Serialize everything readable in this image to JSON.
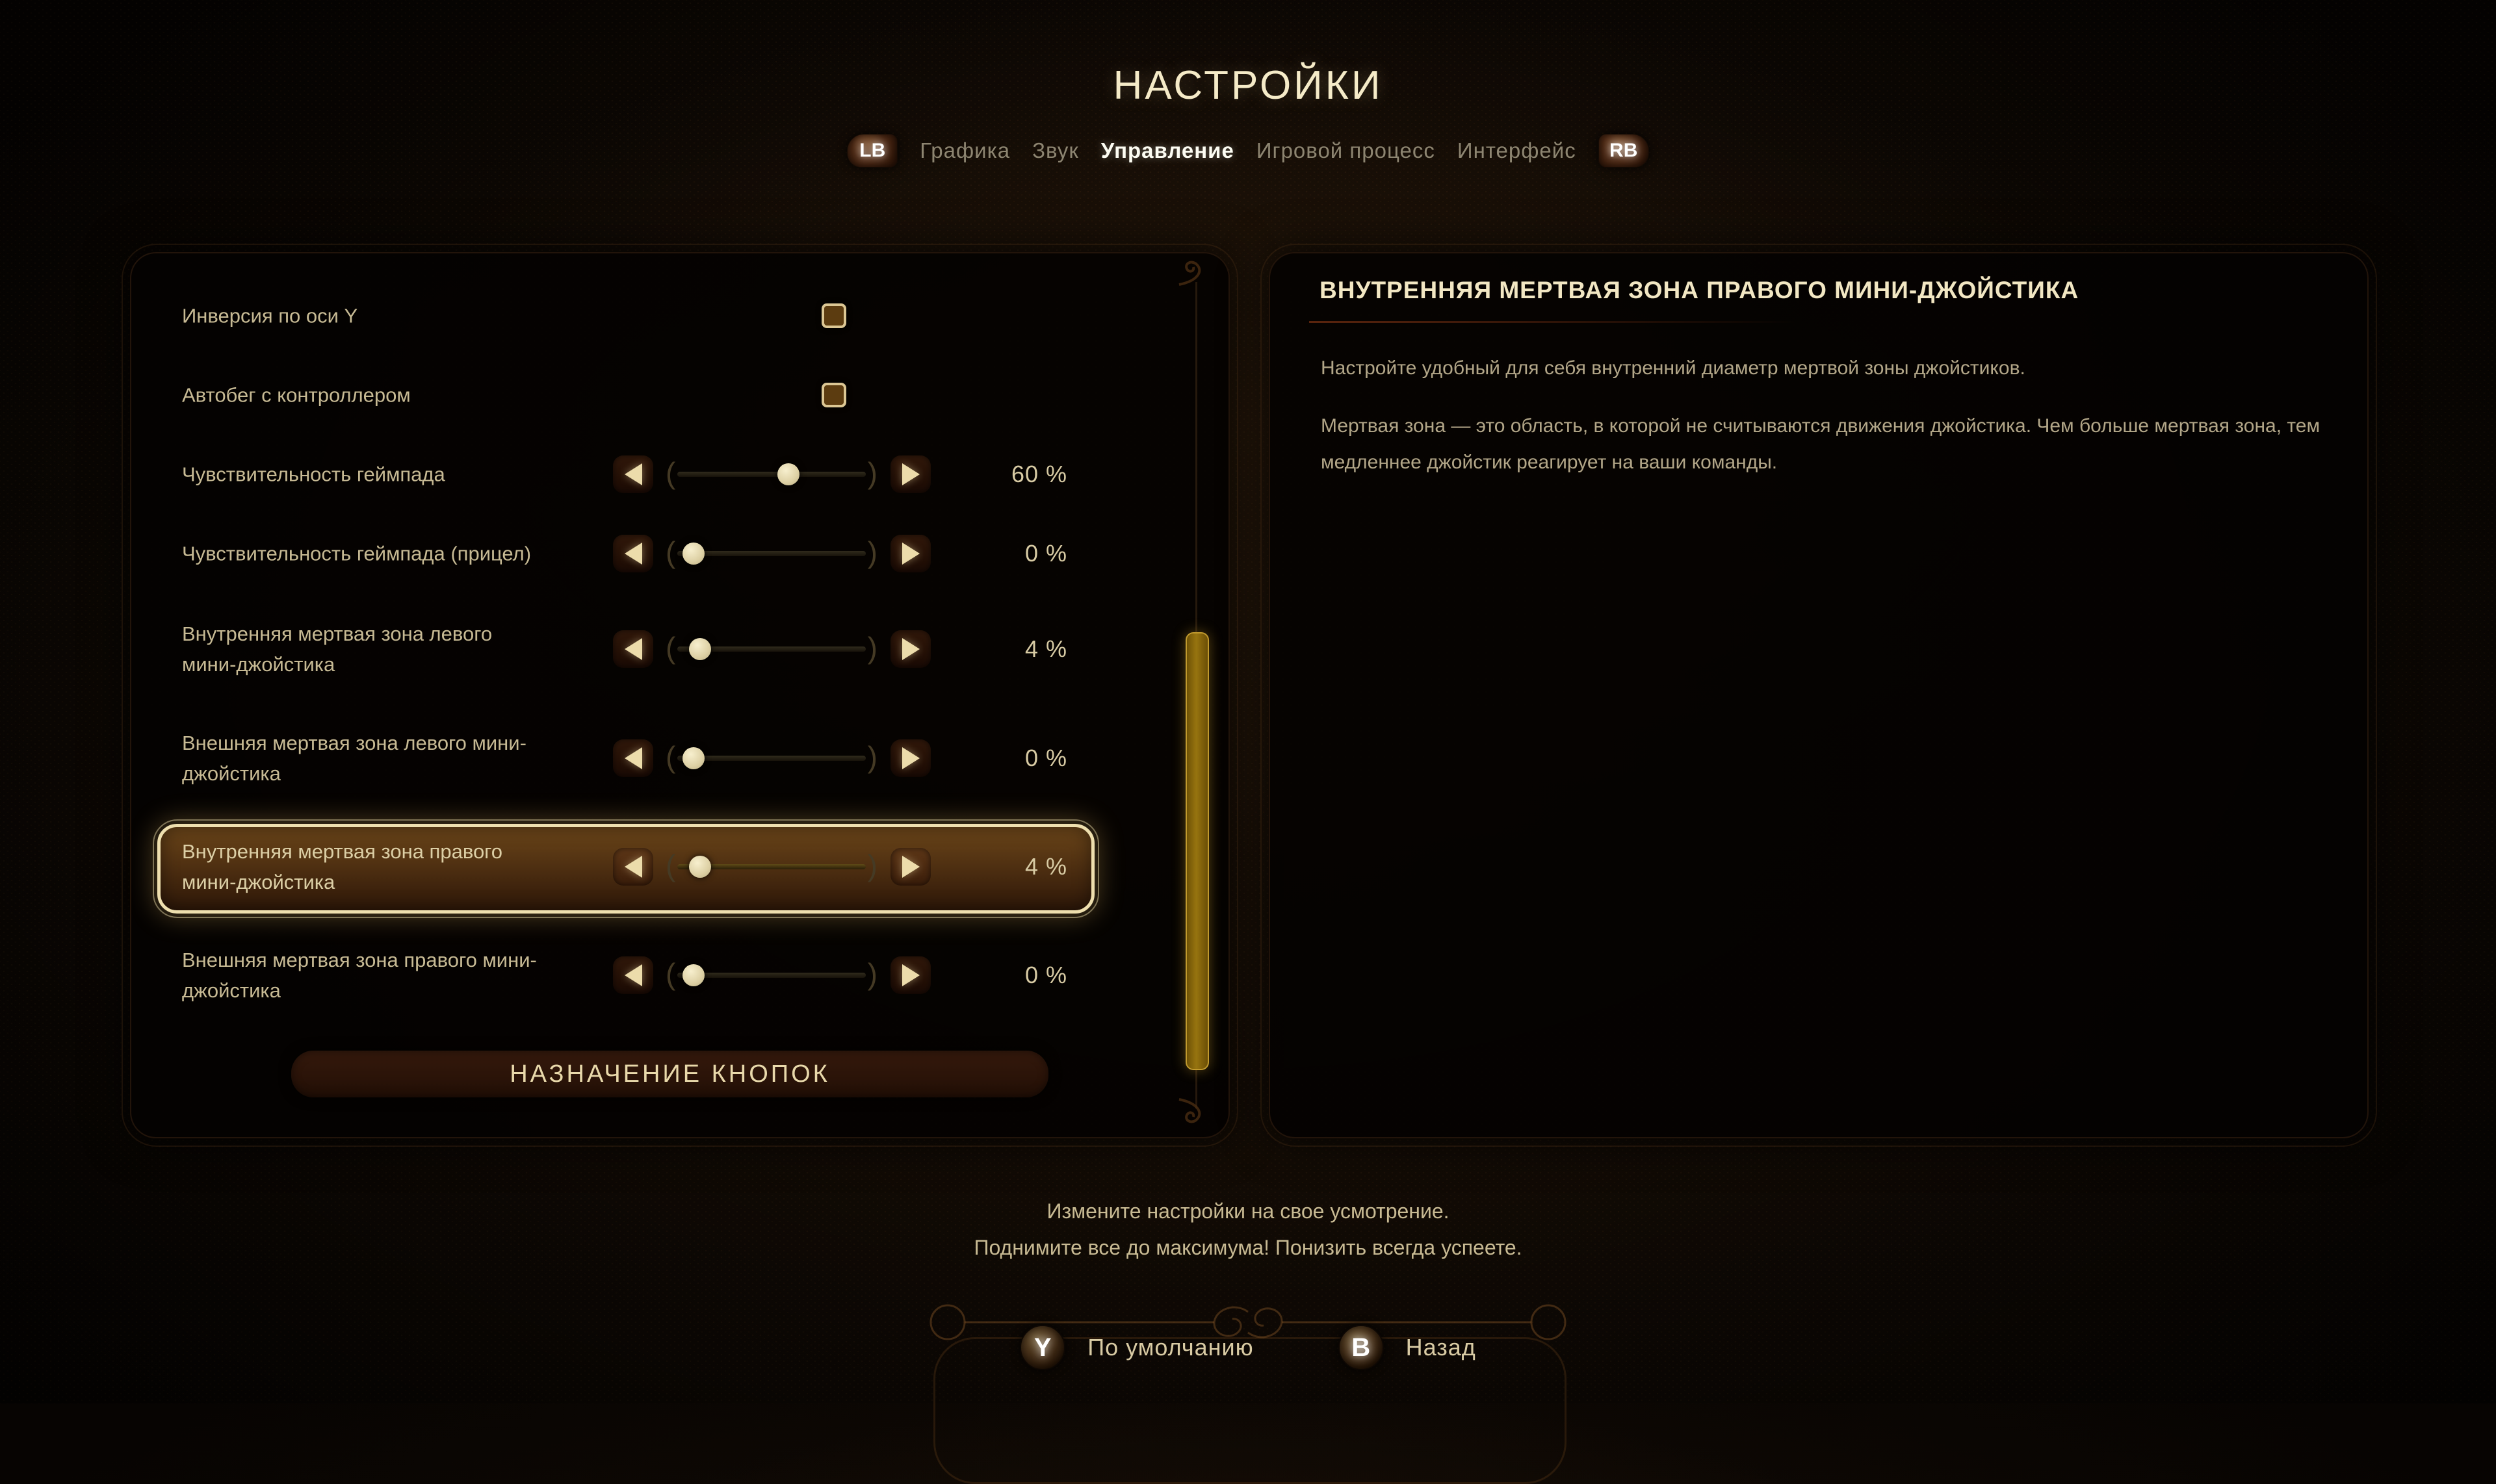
{
  "title": "НАСТРОЙКИ",
  "tabs": {
    "lb_key": "LB",
    "rb_key": "RB",
    "items": [
      {
        "label": "Графика",
        "active": false
      },
      {
        "label": "Звук",
        "active": false
      },
      {
        "label": "Управление",
        "active": true
      },
      {
        "label": "Игровой процесс",
        "active": false
      },
      {
        "label": "Интерфейс",
        "active": false
      }
    ]
  },
  "left_panel": {
    "rows": [
      {
        "type": "checkbox",
        "label": "Инверсия по оси Y",
        "checked": false
      },
      {
        "type": "checkbox",
        "label": "Автобег с контроллером",
        "checked": false
      },
      {
        "type": "slider",
        "label": "Чувствительность геймпада",
        "value": 60,
        "display": "60 %",
        "selected": false
      },
      {
        "type": "slider",
        "label": "Чувствительность геймпада (прицел)",
        "value": 0,
        "display": "0 %",
        "selected": false
      },
      {
        "type": "slider",
        "label": "Внутренняя мертвая зона левого мини-джойстика",
        "value": 4,
        "display": "4 %",
        "selected": false
      },
      {
        "type": "slider",
        "label": "Внешняя мертвая зона левого мини-джойстика",
        "value": 0,
        "display": "0 %",
        "selected": false
      },
      {
        "type": "slider",
        "label": "Внутренняя мертвая зона правого мини-джойстика",
        "value": 4,
        "display": "4 %",
        "selected": true
      },
      {
        "type": "slider",
        "label": "Внешняя мертвая зона правого мини-джойстика",
        "value": 0,
        "display": "0 %",
        "selected": false
      }
    ],
    "remap_button": "НАЗНАЧЕНИЕ КНОПОК"
  },
  "right_panel": {
    "title": "ВНУТРЕННЯЯ МЕРТВАЯ ЗОНА ПРАВОГО МИНИ-ДЖОЙСТИКА",
    "paragraph_1": "Настройте удобный для себя внутренний диаметр мертвой зоны джойстиков.",
    "paragraph_2": "Мертвая зона — это область, в которой не считываются движения джойстика. Чем больше мертвая зона, тем медленнее джойстик реагирует на ваши команды."
  },
  "footer": {
    "hint_line_1": "Измените настройки на свое усмотрение.",
    "hint_line_2": "Поднимите все до максимума! Понизить всегда успеете.",
    "default_key": "Y",
    "default_label": "По умолчанию",
    "back_key": "B",
    "back_label": "Назад"
  },
  "colors": {
    "accent_cream": "#eedfae",
    "title_text": "#f5ebc8",
    "body_text": "#c7ba94",
    "tab_inactive": "#8d8571",
    "tab_active": "#fdfdf3",
    "highlight_bg": "#5a3513",
    "scroll_thumb_gold": "#97740f",
    "panel_bg": "#050302"
  }
}
